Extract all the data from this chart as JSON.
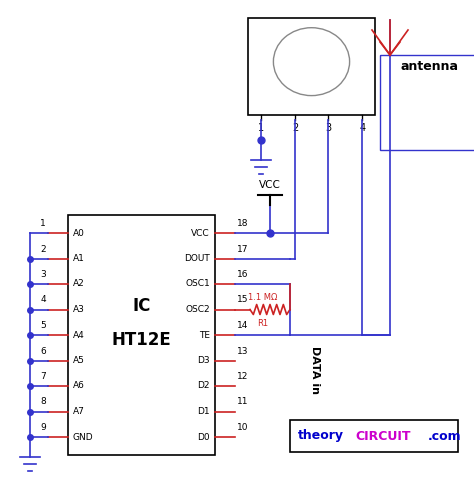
{
  "bg_color": "#ffffff",
  "line_color_blue": "#3333cc",
  "line_color_red": "#cc2222",
  "line_color_black": "#000000",
  "line_color_gray": "#888888",
  "ic_label1": "IC",
  "ic_label2": "HT12E",
  "left_pins": [
    {
      "num": "1",
      "label": "A0"
    },
    {
      "num": "2",
      "label": "A1"
    },
    {
      "num": "3",
      "label": "A2"
    },
    {
      "num": "4",
      "label": "A3"
    },
    {
      "num": "5",
      "label": "A4"
    },
    {
      "num": "6",
      "label": "A5"
    },
    {
      "num": "7",
      "label": "A6"
    },
    {
      "num": "8",
      "label": "A7"
    },
    {
      "num": "9",
      "label": "GND"
    }
  ],
  "right_pins": [
    {
      "num": "18",
      "label": "VCC"
    },
    {
      "num": "17",
      "label": "DOUT"
    },
    {
      "num": "16",
      "label": "OSC1"
    },
    {
      "num": "15",
      "label": "OSC2"
    },
    {
      "num": "14",
      "label": "TE"
    },
    {
      "num": "13",
      "label": "D3"
    },
    {
      "num": "12",
      "label": "D2"
    },
    {
      "num": "11",
      "label": "D1"
    },
    {
      "num": "10",
      "label": "D0"
    }
  ],
  "watermark_theory_color": "#0000cc",
  "watermark_circuit_color": "#cc00cc",
  "antenna_label": "antenna",
  "resistor_label": "1.1 MΩ",
  "resistor_name": "R1",
  "vcc_label": "VCC",
  "data_in_label": "DATA in"
}
